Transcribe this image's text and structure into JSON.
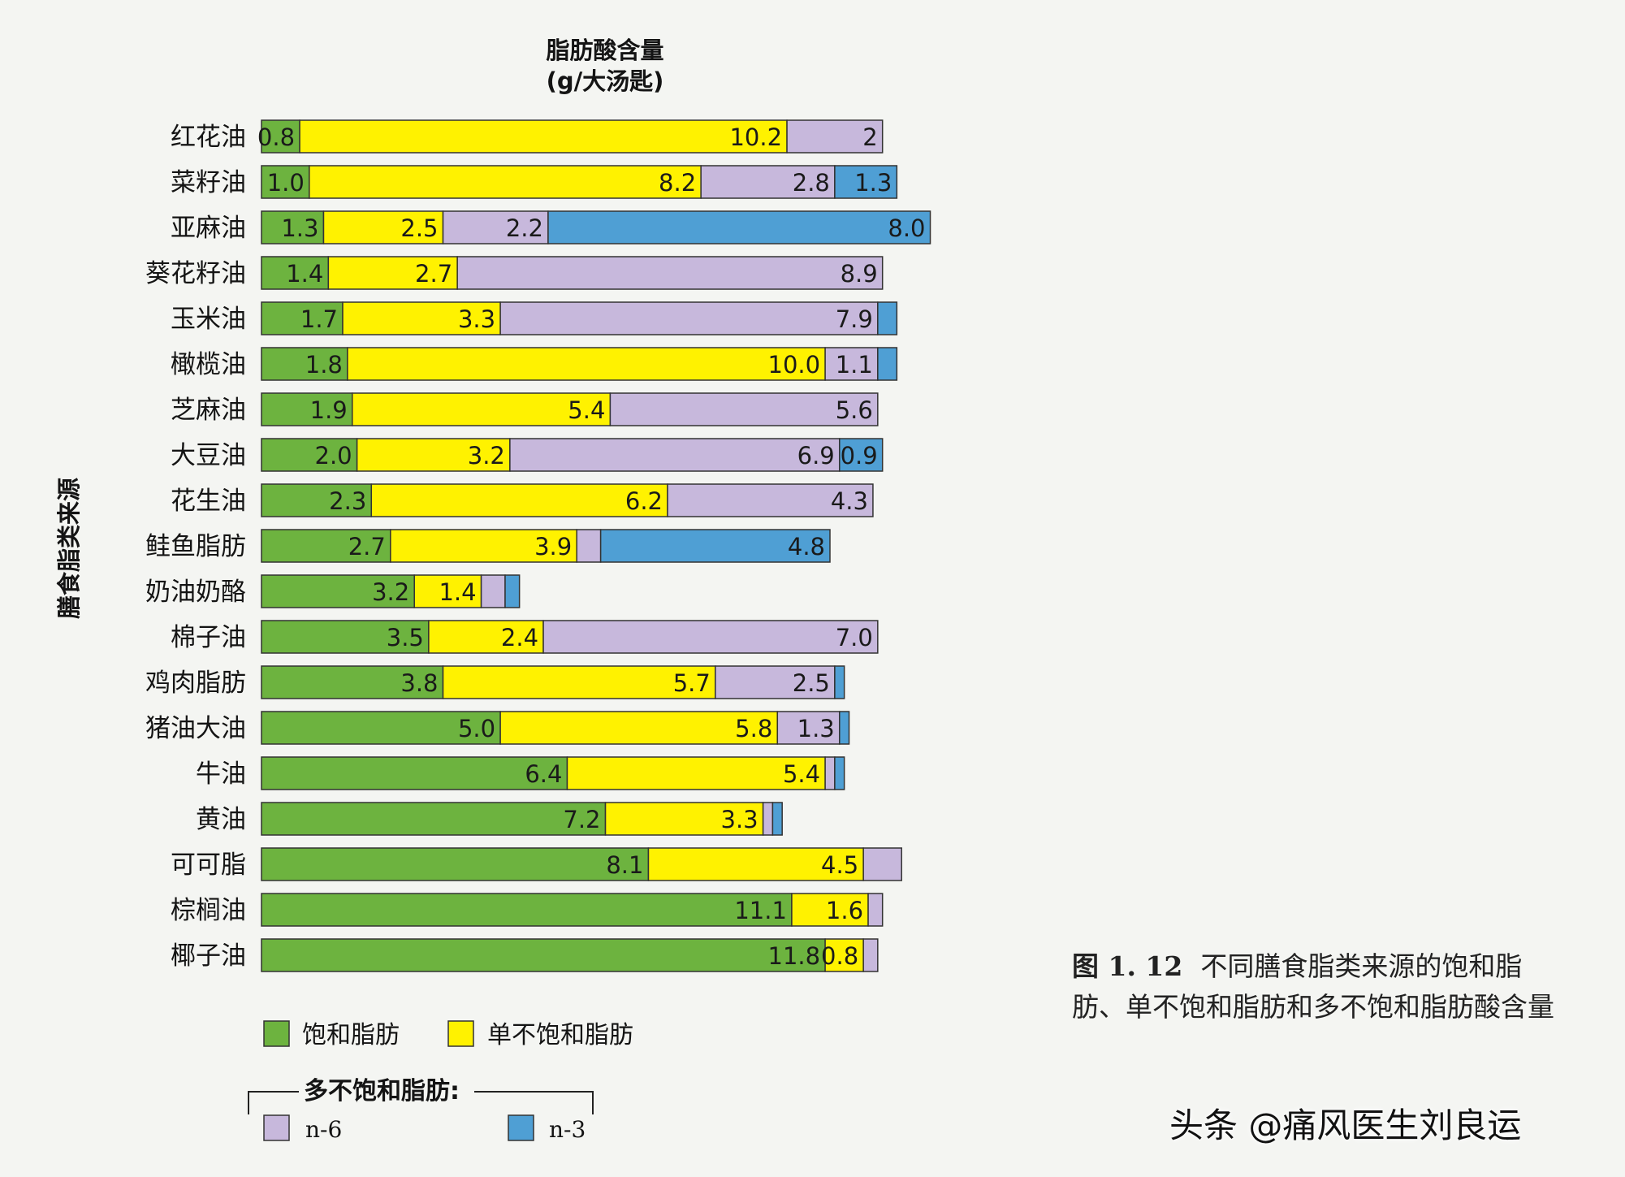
{
  "chart_data": {
    "type": "bar",
    "orientation": "horizontal",
    "stacked": true,
    "title": "脂肪酸含量",
    "title_unit": "(g/大汤匙)",
    "ylabel": "膳食脂类来源",
    "categories": [
      "红花油",
      "菜籽油",
      "亚麻油",
      "葵花籽油",
      "玉米油",
      "橄榄油",
      "芝麻油",
      "大豆油",
      "花生油",
      "鲑鱼脂肪",
      "奶油奶酪",
      "棉子油",
      "鸡肉脂肪",
      "猪油大油",
      "牛油",
      "黄油",
      "可可脂",
      "棕榈油",
      "椰子油"
    ],
    "series": [
      {
        "name": "饱和脂肪",
        "color": "#6db33f",
        "values": [
          0.8,
          1.0,
          1.3,
          1.4,
          1.7,
          1.8,
          1.9,
          2.0,
          2.3,
          2.7,
          3.2,
          3.5,
          3.8,
          5.0,
          6.4,
          7.2,
          8.1,
          11.1,
          11.8
        ],
        "labels": [
          "0.8",
          "1.0",
          "1.3",
          "1.4",
          "1.7",
          "1.8",
          "1.9",
          "2.0",
          "2.3",
          "2.7",
          "3.2",
          "3.5",
          "3.8",
          "5.0",
          "6.4",
          "7.2",
          "8.1",
          "11.1",
          "11.8"
        ]
      },
      {
        "name": "单不饱和脂肪",
        "color": "#fff200",
        "values": [
          10.2,
          8.2,
          2.5,
          2.7,
          3.3,
          10.0,
          5.4,
          3.2,
          6.2,
          3.9,
          1.4,
          2.4,
          5.7,
          5.8,
          5.4,
          3.3,
          4.5,
          1.6,
          0.8
        ],
        "labels": [
          "10.2",
          "8.2",
          "2.5",
          "2.7",
          "3.3",
          "10.0",
          "5.4",
          "3.2",
          "6.2",
          "3.9",
          "1.4",
          "2.4",
          "5.7",
          "5.8",
          "5.4",
          "3.3",
          "4.5",
          "1.6",
          "0.8"
        ]
      },
      {
        "name": "n-6",
        "color": "#c7b8dc",
        "values": [
          2.0,
          2.8,
          2.2,
          8.9,
          7.9,
          1.1,
          5.6,
          6.9,
          4.3,
          0.5,
          0.5,
          7.0,
          2.5,
          1.3,
          0.2,
          0.2,
          0.8,
          0.3,
          0.3
        ],
        "labels": [
          "2",
          "2.8",
          "2.2",
          "8.9",
          "7.9",
          "1.1",
          "5.6",
          "6.9",
          "4.3",
          "",
          "",
          "7.0",
          "2.5",
          "1.3",
          "",
          "",
          "",
          "",
          ""
        ]
      },
      {
        "name": "n-3",
        "color": "#4f9fd4",
        "values": [
          0,
          1.3,
          8.0,
          0,
          0.4,
          0.4,
          0,
          0.9,
          0,
          4.8,
          0.3,
          0,
          0.2,
          0.2,
          0.2,
          0.2,
          0,
          0,
          0
        ],
        "labels": [
          "",
          "1.3",
          "8.0",
          "",
          "",
          "",
          "",
          "0.9",
          "",
          "4.8",
          "",
          "",
          "",
          "",
          "",
          "",
          "",
          "",
          ""
        ]
      }
    ],
    "xlim": [
      0,
      15.3
    ],
    "grid": false,
    "legend": {
      "saturated": "饱和脂肪",
      "mono": "单不饱和脂肪",
      "poly_group": "多不饱和脂肪:",
      "n6": "n-6",
      "n3": "n-3"
    }
  },
  "caption": {
    "figure_number": "图 1. 12",
    "text": "不同膳食脂类来源的饱和脂肪、单不饱和脂肪和多不饱和脂肪酸含量"
  },
  "watermark": "头条 @痛风医生刘良运"
}
